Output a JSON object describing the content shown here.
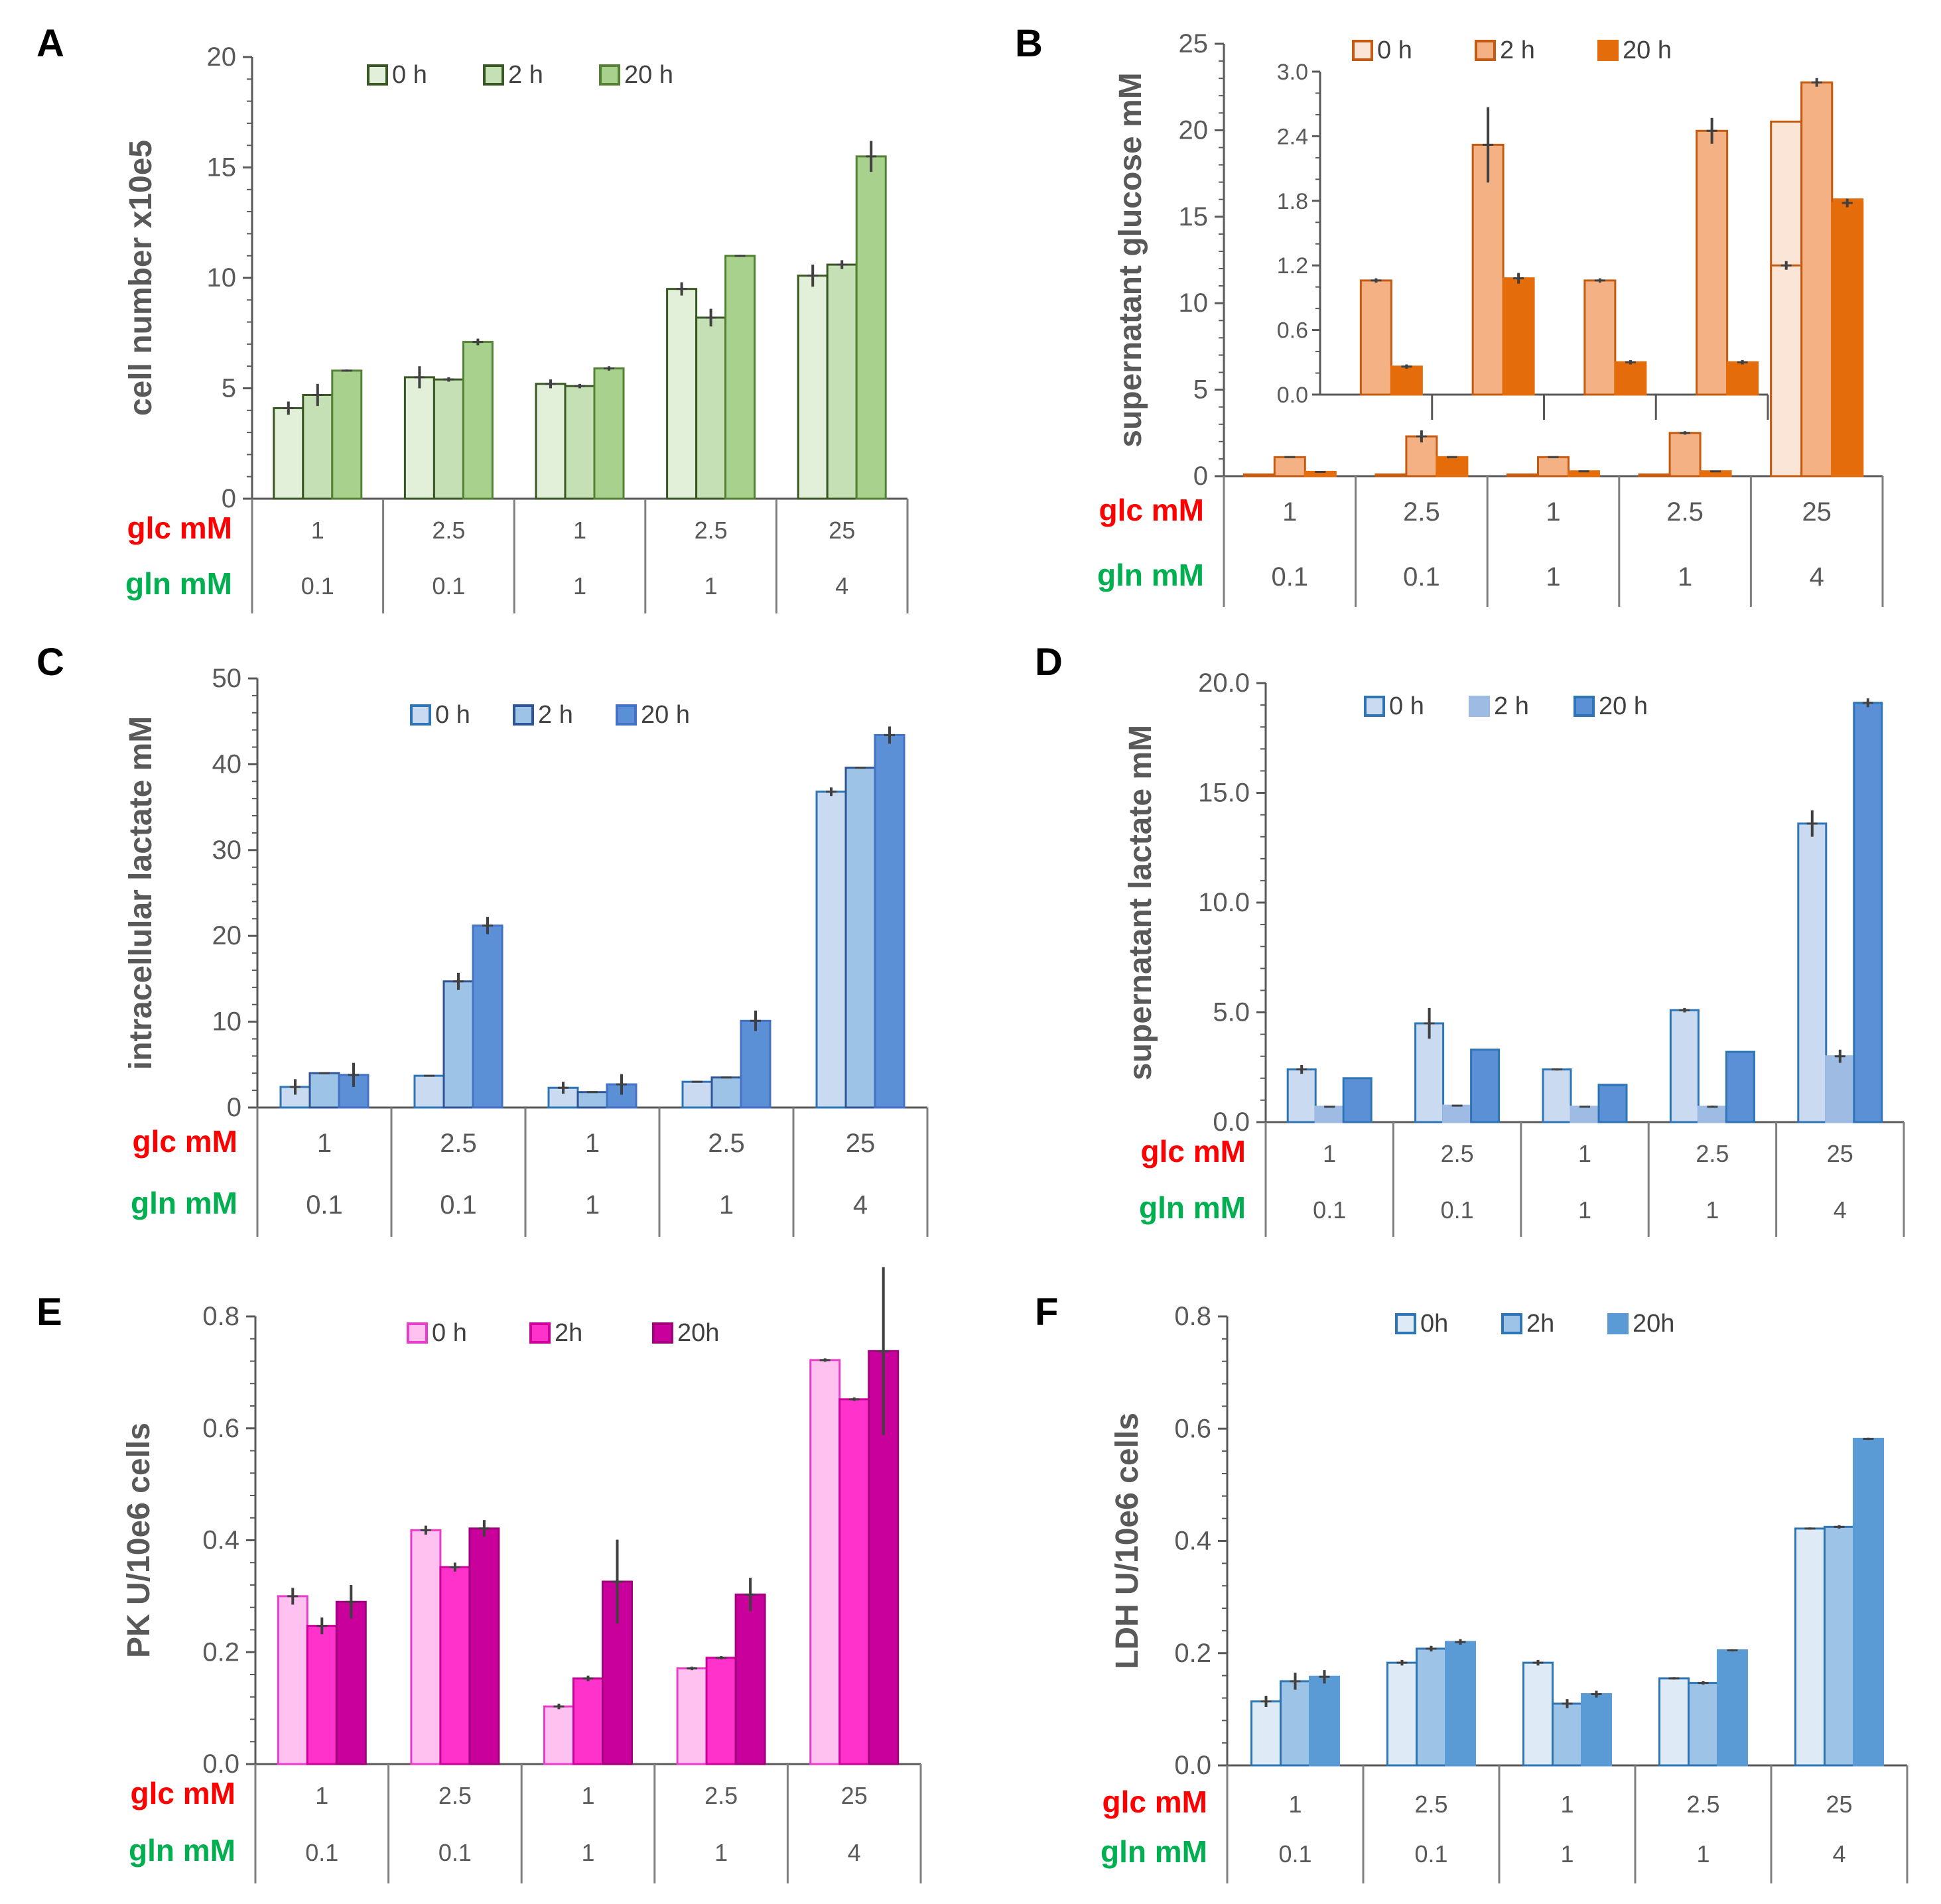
{
  "conditions": {
    "row1_label": "glc mM",
    "row2_label": "gln mM",
    "glc": [
      "1",
      "2.5",
      "1",
      "2.5",
      "25"
    ],
    "gln": [
      "0.1",
      "0.1",
      "1",
      "1",
      "4"
    ],
    "glc_label_color": "#ff0000",
    "gln_label_color": "#00b050"
  },
  "chart_data": [
    {
      "panel": "A",
      "type": "bar",
      "ylabel": "cell number x10e5",
      "ylim": [
        0,
        20
      ],
      "yticks": [
        "0",
        "5",
        "10",
        "15",
        "20"
      ],
      "legend": [
        "0 h",
        "2 h",
        "20 h"
      ],
      "series": [
        {
          "name": "0 h",
          "values": [
            4.1,
            5.5,
            5.2,
            9.5,
            10.1
          ],
          "errors": [
            0.3,
            0.5,
            0.2,
            0.3,
            0.5
          ],
          "color": "#e2f0d9",
          "stroke": "#385723"
        },
        {
          "name": "2 h",
          "values": [
            4.7,
            5.4,
            5.1,
            8.2,
            10.6
          ],
          "errors": [
            0.5,
            0.1,
            0.1,
            0.4,
            0.2
          ],
          "color": "#c5e0b4",
          "stroke": "#385723"
        },
        {
          "name": "20 h",
          "values": [
            5.8,
            7.1,
            5.9,
            11.0,
            15.5
          ],
          "errors": [
            0.05,
            0.15,
            0.1,
            0.05,
            0.7
          ],
          "color": "#a9d18e",
          "stroke": "#548235"
        }
      ]
    },
    {
      "panel": "B",
      "type": "bar",
      "ylabel": "supernatant glucose mM",
      "ylim": [
        0,
        25
      ],
      "yticks": [
        "0",
        "5",
        "10",
        "15",
        "20",
        "25"
      ],
      "legend": [
        "0 h",
        "2 h",
        "20 h"
      ],
      "series": [
        {
          "name": "0 h",
          "values": [
            0.1,
            0.1,
            0.1,
            0.1,
            20.5
          ],
          "errors": [
            0,
            0,
            0,
            0,
            0
          ],
          "color": "#fbe5d6",
          "stroke": "#c55a11"
        },
        {
          "name": "2 h",
          "values": [
            1.1,
            2.3,
            1.1,
            2.5,
            22.5
          ],
          "errors": [
            0.02,
            0.35,
            0.02,
            0.1,
            0
          ],
          "color": "#f4b183",
          "stroke": "#c55a11"
        },
        {
          "name": "20 h",
          "values": [
            0.25,
            1.1,
            0.28,
            0.28,
            16.0
          ],
          "errors": [
            0.02,
            0.05,
            0.02,
            0.02,
            0
          ],
          "color": "#e46c0a",
          "stroke": "#e46c0a"
        }
      ],
      "inset": {
        "ylim": [
          0,
          3.0
        ],
        "yticks": [
          "0.0",
          "0.6",
          "1.2",
          "1.8",
          "2.4",
          "3.0"
        ],
        "series": [
          {
            "name": "0 h",
            "values": [
              null,
              null,
              null,
              null,
              1.2
            ],
            "errors": [
              0,
              0,
              0,
              0,
              0.04
            ]
          },
          {
            "name": "2 h",
            "values": [
              1.06,
              2.32,
              1.06,
              2.45,
              2.9
            ],
            "errors": [
              0.02,
              0.35,
              0.02,
              0.12,
              0.04
            ]
          },
          {
            "name": "20 h",
            "values": [
              0.26,
              1.08,
              0.3,
              0.3,
              1.78
            ],
            "errors": [
              0.02,
              0.05,
              0.02,
              0.02,
              0.04
            ]
          }
        ]
      }
    },
    {
      "panel": "C",
      "type": "bar",
      "ylabel": "intracellular lactate mM",
      "ylim": [
        0,
        50
      ],
      "yticks": [
        "0",
        "10",
        "20",
        "30",
        "40",
        "50"
      ],
      "legend": [
        "0 h",
        "2 h",
        "20 h"
      ],
      "series": [
        {
          "name": "0 h",
          "values": [
            2.4,
            3.7,
            2.3,
            3.0,
            36.8
          ],
          "errors": [
            0.9,
            0.1,
            0.7,
            0.1,
            0.5
          ],
          "color": "#c9daf1",
          "stroke": "#2e75b6"
        },
        {
          "name": "2 h",
          "values": [
            4.0,
            14.7,
            1.8,
            3.5,
            39.6
          ],
          "errors": [
            0.1,
            1.0,
            0.1,
            0.1,
            0.1
          ],
          "color": "#9dc3e6",
          "stroke": "#2f5597"
        },
        {
          "name": "20 h",
          "values": [
            3.8,
            21.2,
            2.7,
            10.1,
            43.4
          ],
          "errors": [
            1.4,
            1.0,
            1.2,
            1.2,
            1.0
          ],
          "color": "#5b8fd6",
          "stroke": "#4472c4"
        }
      ]
    },
    {
      "panel": "D",
      "type": "bar",
      "ylabel": "supernatant  lactate mM",
      "ylim": [
        0,
        20
      ],
      "yticks": [
        "0.0",
        "5.0",
        "10.0",
        "15.0",
        "20.0"
      ],
      "legend": [
        "0 h",
        "2 h",
        "20 h"
      ],
      "series": [
        {
          "name": "0 h",
          "values": [
            2.4,
            4.5,
            2.4,
            5.1,
            13.6
          ],
          "errors": [
            0.2,
            0.7,
            0.05,
            0.1,
            0.6
          ],
          "color": "#c9daf1",
          "stroke": "#2e75b6"
        },
        {
          "name": "2 h",
          "values": [
            0.7,
            0.75,
            0.7,
            0.7,
            3.0
          ],
          "errors": [
            0.02,
            0.02,
            0.02,
            0.05,
            0.3
          ],
          "color": "#9dbbe3",
          "stroke": "#9dbbe3"
        },
        {
          "name": "20 h",
          "values": [
            2.0,
            3.3,
            1.7,
            3.2,
            19.1
          ],
          "errors": [
            0,
            0,
            0,
            0,
            0.2
          ],
          "color": "#5b8fd6",
          "stroke": "#2e75b6"
        }
      ]
    },
    {
      "panel": "E",
      "type": "bar",
      "ylabel": "PK  U/10e6 cells",
      "ylim": [
        0,
        0.8
      ],
      "yticks": [
        "0.0",
        "0.2",
        "0.4",
        "0.6",
        "0.8"
      ],
      "legend": [
        "0 h",
        "2h",
        "20h"
      ],
      "series": [
        {
          "name": "0 h",
          "values": [
            0.3,
            0.418,
            0.103,
            0.171,
            0.722
          ],
          "errors": [
            0.015,
            0.008,
            0.005,
            0.003,
            0.003
          ],
          "color": "#ffc1f0",
          "stroke": "#e83dc8"
        },
        {
          "name": "2h",
          "values": [
            0.247,
            0.352,
            0.153,
            0.19,
            0.652
          ],
          "errors": [
            0.015,
            0.008,
            0.005,
            0.003,
            0.003
          ],
          "color": "#ff33cc",
          "stroke": "#cc0099"
        },
        {
          "name": "20h",
          "values": [
            0.29,
            0.421,
            0.326,
            0.303,
            0.738
          ],
          "errors": [
            0.03,
            0.015,
            0.075,
            0.03,
            0.15
          ],
          "color": "#c9009c",
          "stroke": "#a3007e"
        }
      ]
    },
    {
      "panel": "F",
      "type": "bar",
      "ylabel": "LDH  U/10e6 cells",
      "ylim": [
        0,
        0.8
      ],
      "yticks": [
        "0.0",
        "0.2",
        "0.4",
        "0.6",
        "0.8"
      ],
      "legend": [
        "0h",
        "2h",
        "20h"
      ],
      "series": [
        {
          "name": "0h",
          "values": [
            0.114,
            0.183,
            0.183,
            0.155,
            0.422
          ],
          "errors": [
            0.01,
            0.005,
            0.005,
            0.002,
            0.002
          ],
          "color": "#deebf7",
          "stroke": "#2e75b6"
        },
        {
          "name": "2h",
          "values": [
            0.15,
            0.208,
            0.11,
            0.147,
            0.425
          ],
          "errors": [
            0.015,
            0.005,
            0.008,
            0.003,
            0.003
          ],
          "color": "#9dc3e6",
          "stroke": "#2e75b6"
        },
        {
          "name": "20h",
          "values": [
            0.158,
            0.22,
            0.127,
            0.205,
            0.582
          ],
          "errors": [
            0.012,
            0.005,
            0.006,
            0.002,
            0.002
          ],
          "color": "#5b9bd5",
          "stroke": "#5b9bd5"
        }
      ]
    }
  ]
}
